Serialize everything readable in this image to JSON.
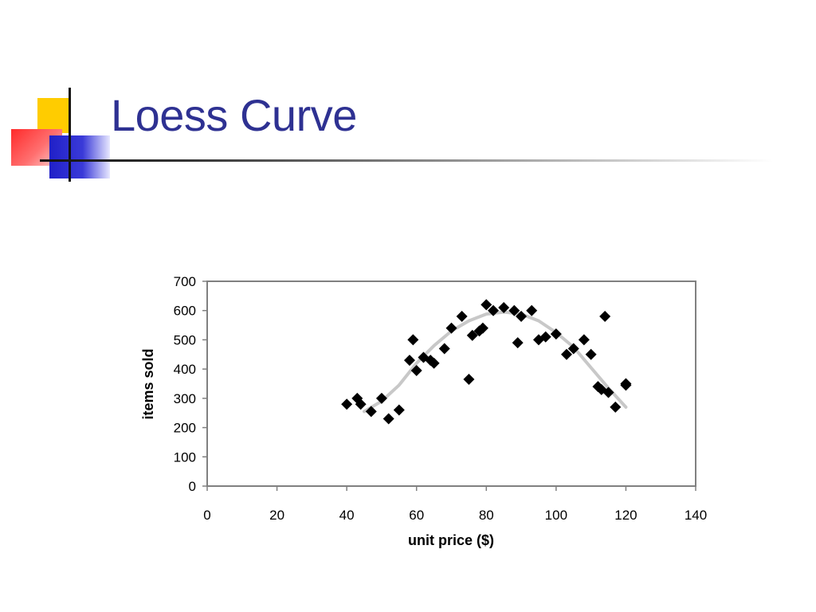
{
  "slide": {
    "title": "Loess Curve"
  },
  "colors": {
    "title": "#2e3192",
    "markers": "#000000",
    "curve": "#c8c8c8",
    "frame": "#808080"
  },
  "chart_data": {
    "type": "scatter",
    "xlabel": "unit price ($)",
    "ylabel": "items sold",
    "xlim": [
      0,
      140
    ],
    "ylim": [
      0,
      700
    ],
    "xticks": [
      0,
      20,
      40,
      60,
      80,
      100,
      120,
      140
    ],
    "yticks": [
      0,
      100,
      200,
      300,
      400,
      500,
      600,
      700
    ],
    "grid": false,
    "legend": "none",
    "points": [
      [
        40,
        280
      ],
      [
        43,
        300
      ],
      [
        44,
        280
      ],
      [
        47,
        255
      ],
      [
        50,
        300
      ],
      [
        52,
        230
      ],
      [
        55,
        260
      ],
      [
        58,
        430
      ],
      [
        59,
        500
      ],
      [
        60,
        395
      ],
      [
        62,
        440
      ],
      [
        64,
        430
      ],
      [
        65,
        420
      ],
      [
        68,
        470
      ],
      [
        70,
        540
      ],
      [
        73,
        580
      ],
      [
        75,
        365
      ],
      [
        76,
        515
      ],
      [
        78,
        530
      ],
      [
        79,
        540
      ],
      [
        80,
        620
      ],
      [
        82,
        600
      ],
      [
        85,
        610
      ],
      [
        88,
        600
      ],
      [
        89,
        490
      ],
      [
        90,
        580
      ],
      [
        93,
        600
      ],
      [
        95,
        500
      ],
      [
        97,
        510
      ],
      [
        100,
        520
      ],
      [
        103,
        450
      ],
      [
        105,
        470
      ],
      [
        108,
        500
      ],
      [
        110,
        450
      ],
      [
        112,
        340
      ],
      [
        113,
        330
      ],
      [
        114,
        580
      ],
      [
        115,
        320
      ],
      [
        117,
        270
      ],
      [
        120,
        345
      ],
      [
        120,
        350
      ]
    ],
    "curve": [
      [
        45,
        255
      ],
      [
        50,
        290
      ],
      [
        55,
        345
      ],
      [
        60,
        420
      ],
      [
        65,
        480
      ],
      [
        70,
        530
      ],
      [
        75,
        565
      ],
      [
        80,
        588
      ],
      [
        85,
        595
      ],
      [
        90,
        588
      ],
      [
        95,
        565
      ],
      [
        100,
        525
      ],
      [
        105,
        475
      ],
      [
        110,
        405
      ],
      [
        115,
        335
      ],
      [
        120,
        270
      ]
    ]
  }
}
